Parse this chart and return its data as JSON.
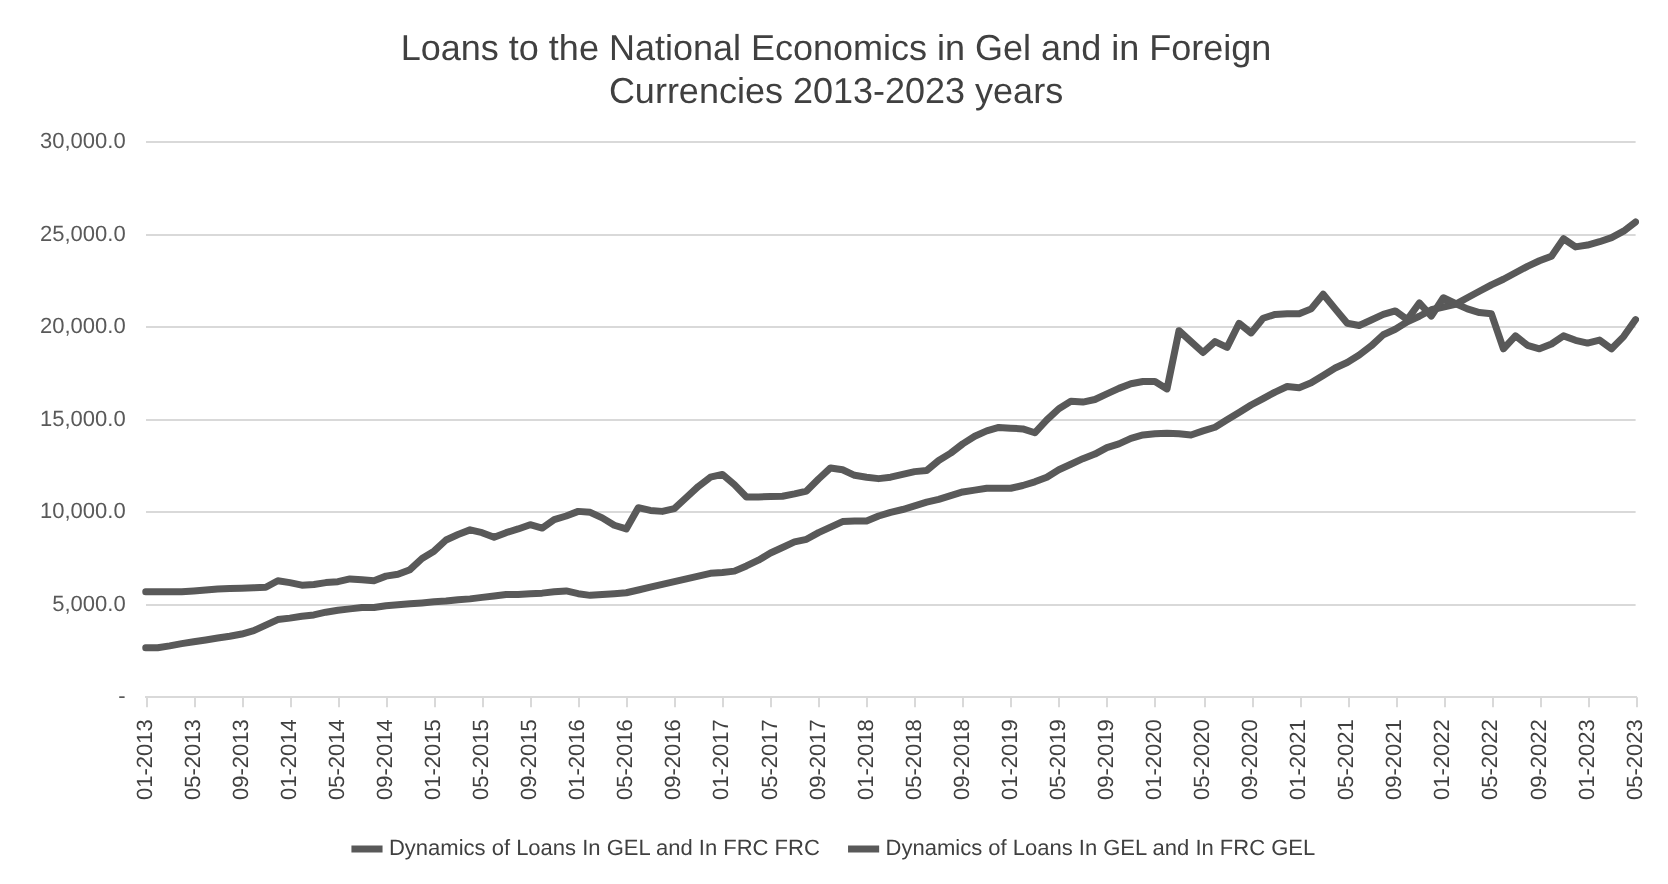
{
  "chart_data": {
    "type": "line",
    "title": "Loans to the National Economics in Gel and in Foreign Currencies 2013-2023 years",
    "categories": [
      "01-2013",
      null,
      null,
      null,
      "05-2013",
      null,
      null,
      null,
      "09-2013",
      null,
      null,
      null,
      "01-2014",
      null,
      null,
      null,
      "05-2014",
      null,
      null,
      null,
      "09-2014",
      null,
      null,
      null,
      "01-2015",
      null,
      null,
      null,
      "05-2015",
      null,
      null,
      null,
      "09-2015",
      null,
      null,
      null,
      "01-2016",
      null,
      null,
      null,
      "05-2016",
      null,
      null,
      null,
      "09-2016",
      null,
      null,
      null,
      "01-2017",
      null,
      null,
      null,
      "05-2017",
      null,
      null,
      null,
      "09-2017",
      null,
      null,
      null,
      "01-2018",
      null,
      null,
      null,
      "05-2018",
      null,
      null,
      null,
      "09-2018",
      null,
      null,
      null,
      "01-2019",
      null,
      null,
      null,
      "05-2019",
      null,
      null,
      null,
      "09-2019",
      null,
      null,
      null,
      "01-2020",
      null,
      null,
      null,
      "05-2020",
      null,
      null,
      null,
      "09-2020",
      null,
      null,
      null,
      "01-2021",
      null,
      null,
      null,
      "05-2021",
      null,
      null,
      null,
      "09-2021",
      null,
      null,
      null,
      "01-2022",
      null,
      null,
      null,
      "05-2022",
      null,
      null,
      null,
      "09-2022",
      null,
      null,
      null,
      "01-2023",
      null,
      null,
      null,
      "05-2023"
    ],
    "series": [
      {
        "name": "Dynamics of Loans In GEL and In FRC FRC",
        "color": "#595959",
        "values": [
          5710,
          5710,
          5700,
          5710,
          5750,
          5800,
          5850,
          5880,
          5900,
          5920,
          5950,
          6300,
          6200,
          6060,
          6100,
          6200,
          6250,
          6400,
          6350,
          6300,
          6550,
          6650,
          6900,
          7500,
          7900,
          8500,
          8800,
          9050,
          8900,
          8650,
          8900,
          9100,
          9330,
          9150,
          9600,
          9800,
          10050,
          10000,
          9700,
          9300,
          9100,
          10250,
          10100,
          10050,
          10200,
          10800,
          11400,
          11900,
          12050,
          11500,
          10830,
          10830,
          10850,
          10870,
          11000,
          11150,
          11800,
          12400,
          12300,
          12000,
          11900,
          11820,
          11900,
          12050,
          12200,
          12260,
          12800,
          13200,
          13700,
          14110,
          14400,
          14590,
          14550,
          14510,
          14300,
          15000,
          15600,
          16000,
          15960,
          16100,
          16400,
          16700,
          16950,
          17070,
          17070,
          16670,
          19820,
          19230,
          18640,
          19230,
          18920,
          20220,
          19700,
          20490,
          20700,
          20730,
          20730,
          21000,
          21790,
          21000,
          20220,
          20100,
          20400,
          20700,
          20890,
          20420,
          21320,
          20610,
          21600,
          21290,
          21000,
          20800,
          20730,
          18840,
          19540,
          19030,
          18840,
          19100,
          19540,
          19300,
          19150,
          19310,
          18840,
          19500,
          20420
        ]
      },
      {
        "name": "Dynamics of Loans In GEL and In FRC GEL",
        "color": "#595959",
        "values": [
          2680,
          2680,
          2780,
          2900,
          3000,
          3100,
          3200,
          3300,
          3420,
          3600,
          3900,
          4200,
          4280,
          4380,
          4450,
          4600,
          4700,
          4780,
          4850,
          4850,
          4950,
          5000,
          5050,
          5100,
          5160,
          5200,
          5270,
          5320,
          5400,
          5480,
          5560,
          5560,
          5600,
          5630,
          5700,
          5750,
          5600,
          5510,
          5560,
          5600,
          5650,
          5800,
          5950,
          6100,
          6250,
          6400,
          6550,
          6700,
          6750,
          6820,
          7100,
          7410,
          7800,
          8100,
          8400,
          8540,
          8900,
          9200,
          9500,
          9530,
          9530,
          9800,
          10000,
          10150,
          10350,
          10550,
          10700,
          10900,
          11100,
          11200,
          11300,
          11300,
          11300,
          11450,
          11650,
          11900,
          12300,
          12600,
          12900,
          13150,
          13500,
          13700,
          14000,
          14180,
          14250,
          14270,
          14250,
          14180,
          14400,
          14600,
          15000,
          15400,
          15800,
          16150,
          16500,
          16800,
          16740,
          17000,
          17400,
          17800,
          18100,
          18500,
          19000,
          19600,
          19900,
          20300,
          20600,
          20950,
          21100,
          21240,
          21600,
          21950,
          22300,
          22600,
          22950,
          23300,
          23600,
          23850,
          24790,
          24350,
          24450,
          24630,
          24850,
          25200,
          25700
        ]
      }
    ],
    "ylim": [
      0,
      30000
    ],
    "yticks": [
      {
        "value": 0,
        "label": "-"
      },
      {
        "value": 5000,
        "label": "5,000.0"
      },
      {
        "value": 10000,
        "label": "10,000.0"
      },
      {
        "value": 15000,
        "label": "15,000.0"
      },
      {
        "value": 20000,
        "label": "20,000.0"
      },
      {
        "value": 25000,
        "label": "25,000.0"
      },
      {
        "value": 30000,
        "label": "30,000.0"
      }
    ],
    "grid": "y",
    "legend": "bottom",
    "marker": "none",
    "line_style": "solid"
  }
}
